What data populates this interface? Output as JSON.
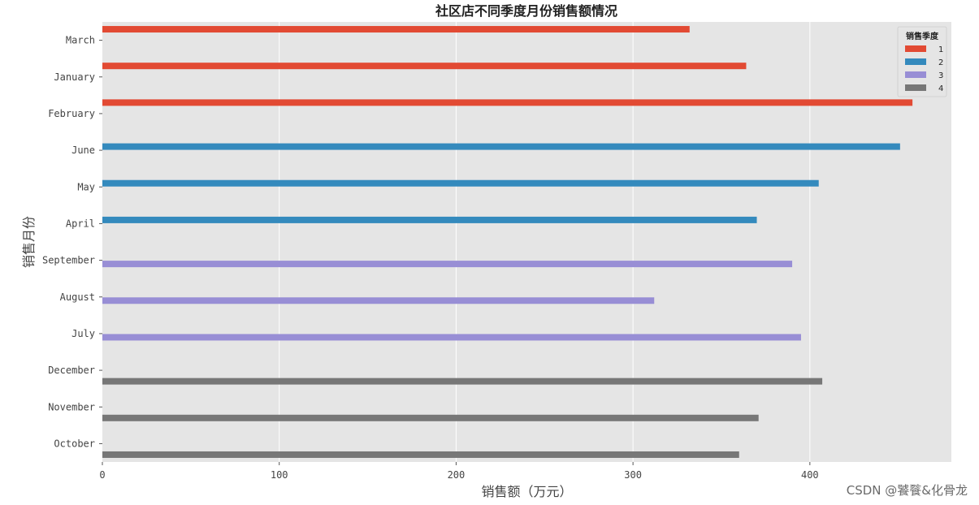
{
  "chart_data": {
    "type": "bar",
    "orientation": "horizontal",
    "title": "社区店不同季度月份销售额情况",
    "xlabel": "销售额（万元）",
    "ylabel": "销售月份",
    "xlim": [
      0,
      480
    ],
    "xticks": [
      "0",
      "100",
      "200",
      "300",
      "400"
    ],
    "grid": true,
    "legend": {
      "title": "销售季度",
      "placement": "top-right"
    },
    "categories": [
      "March",
      "January",
      "February",
      "June",
      "May",
      "April",
      "September",
      "August",
      "July",
      "December",
      "November",
      "October"
    ],
    "series": [
      {
        "name": "1",
        "color": "#e24a33",
        "values": [
          332,
          364,
          458,
          null,
          null,
          null,
          null,
          null,
          null,
          null,
          null,
          null
        ]
      },
      {
        "name": "2",
        "color": "#348abd",
        "values": [
          null,
          null,
          null,
          451,
          405,
          370,
          null,
          null,
          null,
          null,
          null,
          null
        ]
      },
      {
        "name": "3",
        "color": "#988ed5",
        "values": [
          null,
          null,
          null,
          null,
          null,
          null,
          390,
          312,
          395,
          null,
          null,
          null
        ]
      },
      {
        "name": "4",
        "color": "#777777",
        "values": [
          null,
          null,
          null,
          null,
          null,
          null,
          null,
          null,
          null,
          407,
          371,
          360
        ]
      }
    ]
  },
  "watermark": "CSDN @饕餮&化骨龙"
}
